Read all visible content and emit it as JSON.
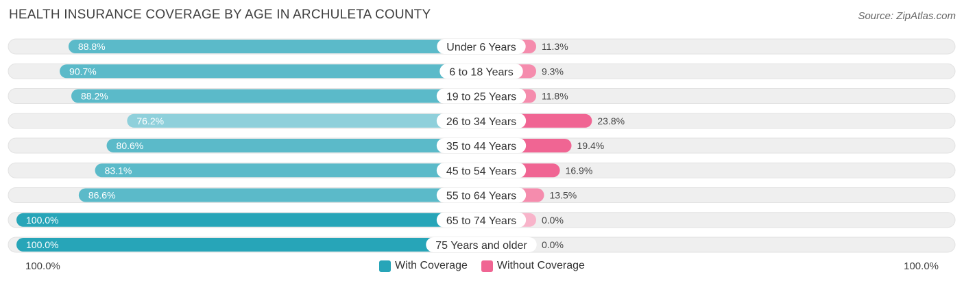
{
  "title": "HEALTH INSURANCE COVERAGE BY AGE IN ARCHULETA COUNTY",
  "source": "Source: ZipAtlas.com",
  "colors": {
    "with_coverage_dark": "#27a5b8",
    "with_coverage_mid": "#5bbac9",
    "with_coverage_light": "#8fd0db",
    "without_coverage_dark": "#f06593",
    "without_coverage_mid": "#f58cad",
    "without_coverage_light": "#f8b4ca",
    "track": "#efefef"
  },
  "legend": {
    "with_label": "With Coverage",
    "without_label": "Without Coverage"
  },
  "axis": {
    "left_label": "100.0%",
    "right_label": "100.0%"
  },
  "chart_data": {
    "type": "bar",
    "orientation": "horizontal-diverging",
    "title": "HEALTH INSURANCE COVERAGE BY AGE IN ARCHULETA COUNTY",
    "categories": [
      "Under 6 Years",
      "6 to 18 Years",
      "19 to 25 Years",
      "26 to 34 Years",
      "35 to 44 Years",
      "45 to 54 Years",
      "55 to 64 Years",
      "65 to 74 Years",
      "75 Years and older"
    ],
    "series": [
      {
        "name": "With Coverage",
        "values": [
          88.8,
          90.7,
          88.2,
          76.2,
          80.6,
          83.1,
          86.6,
          100.0,
          100.0
        ],
        "labels": [
          "88.8%",
          "90.7%",
          "88.2%",
          "76.2%",
          "80.6%",
          "83.1%",
          "86.6%",
          "100.0%",
          "100.0%"
        ]
      },
      {
        "name": "Without Coverage",
        "values": [
          11.3,
          9.3,
          11.8,
          23.8,
          19.4,
          16.9,
          13.5,
          0.0,
          0.0
        ],
        "labels": [
          "11.3%",
          "9.3%",
          "11.8%",
          "23.8%",
          "19.4%",
          "16.9%",
          "13.5%",
          "0.0%",
          "0.0%"
        ]
      }
    ],
    "xlim": [
      -100,
      100
    ],
    "legend_position": "bottom-center"
  }
}
